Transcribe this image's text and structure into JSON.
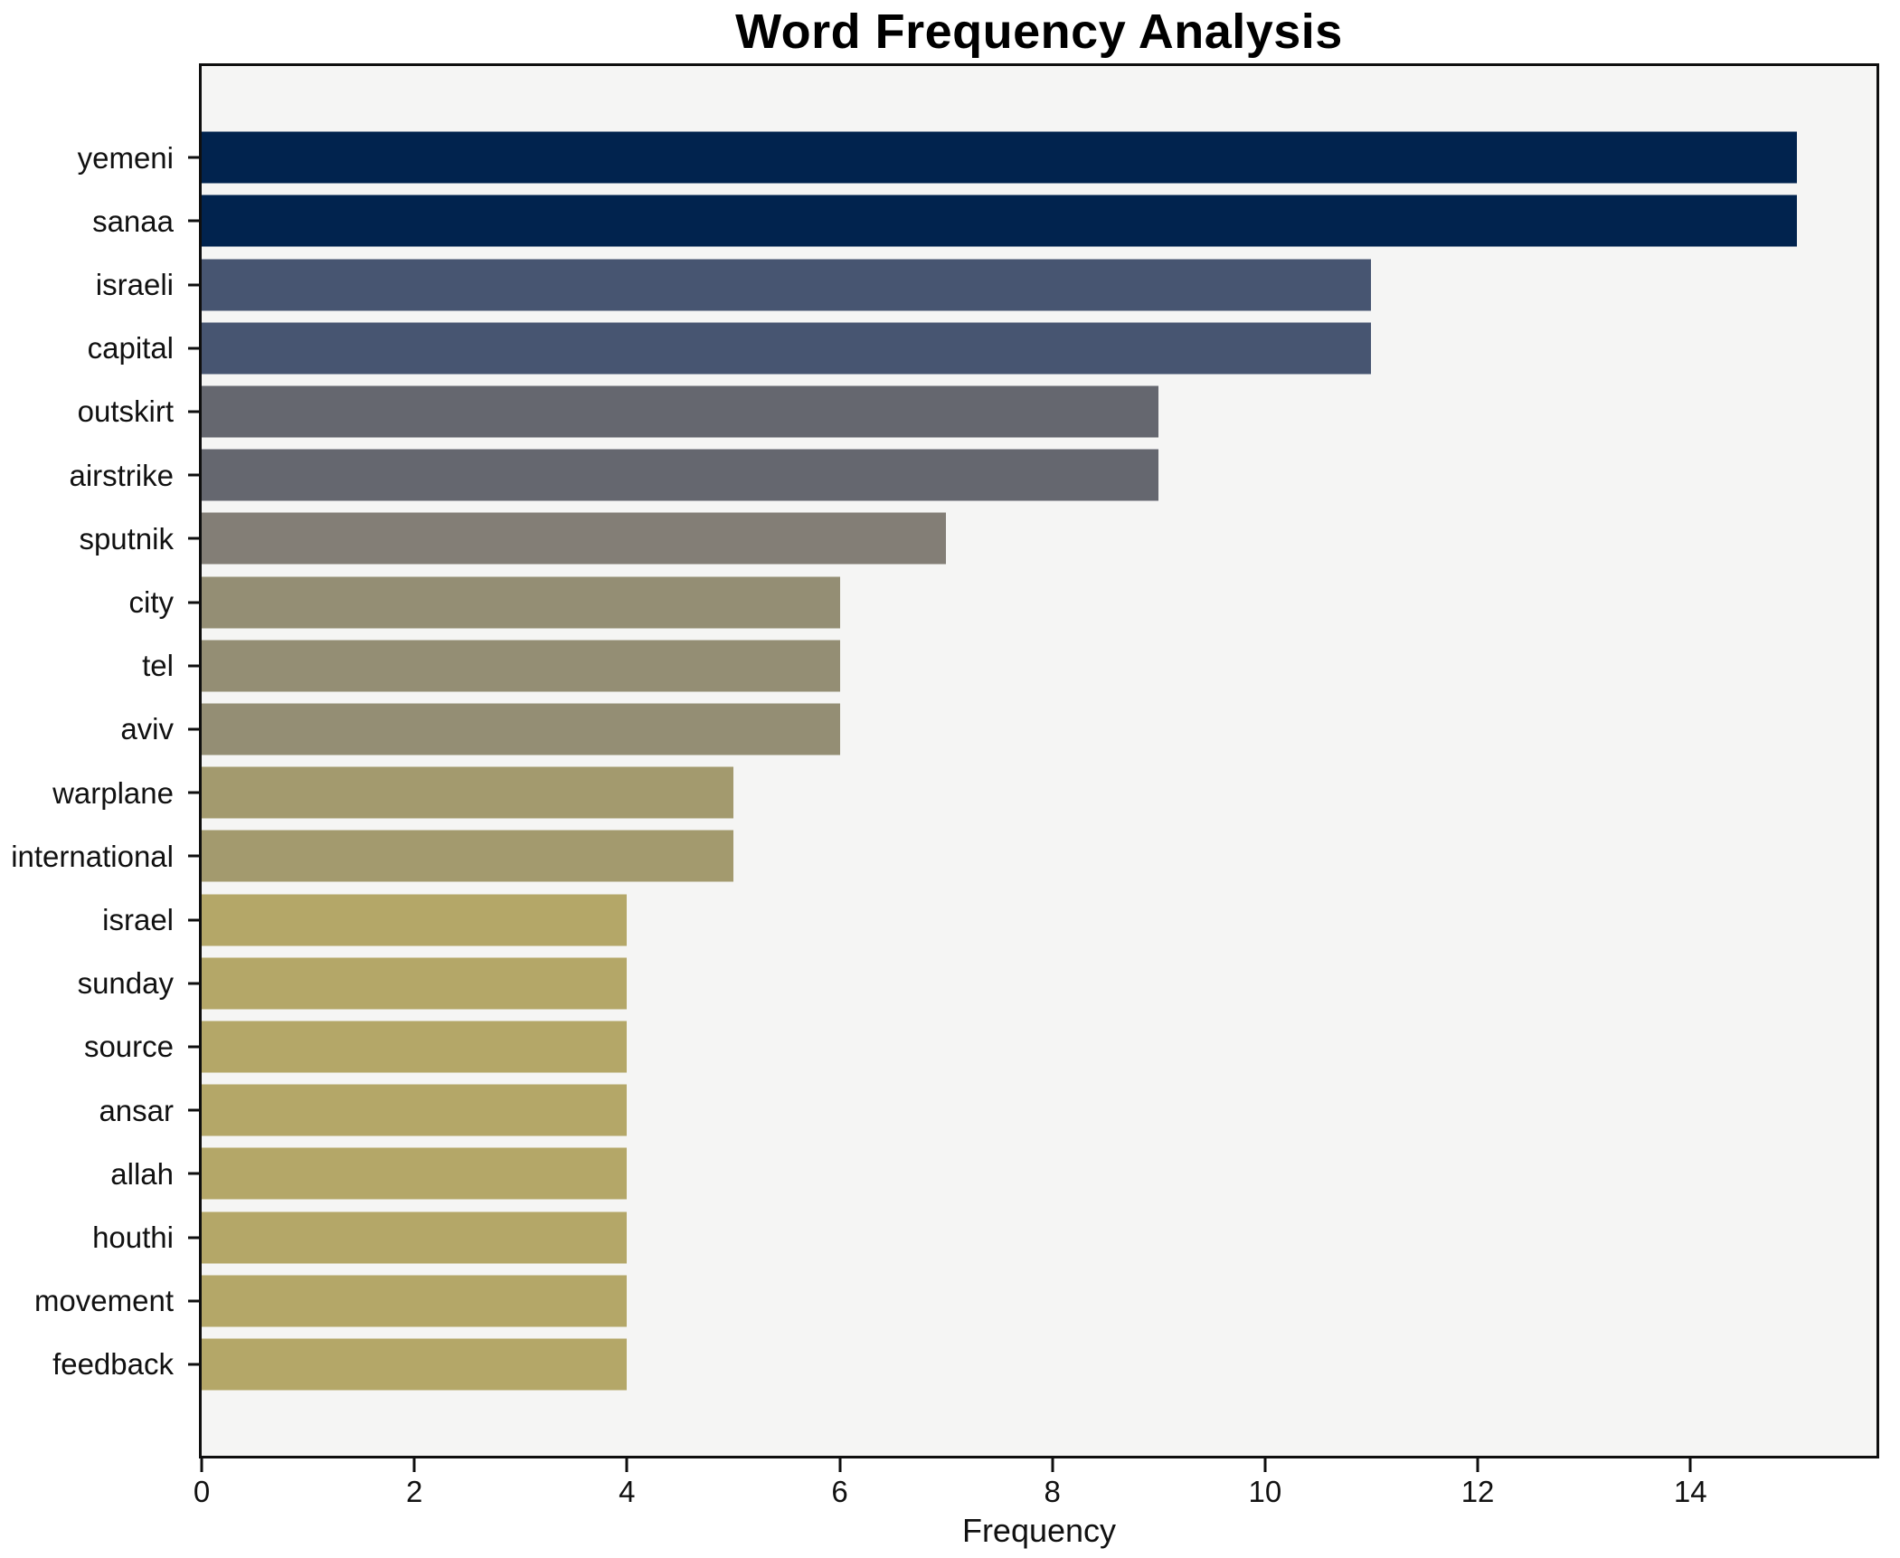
{
  "title": "Word Frequency Analysis",
  "x_axis": {
    "label": "Frequency",
    "ticks": [
      0,
      2,
      4,
      6,
      8,
      10,
      12,
      14
    ]
  },
  "colors": {
    "plot_background": "#f5f5f4",
    "figure_background": "#ffffff",
    "axis_line": "#0f0f0f",
    "text": "#111111"
  },
  "chart_data": {
    "type": "bar",
    "orientation": "horizontal",
    "title": "Word Frequency Analysis",
    "xlabel": "Frequency",
    "ylabel": "",
    "xlim": [
      0,
      15.75
    ],
    "grid": false,
    "legend": null,
    "categories": [
      "yemeni",
      "sanaa",
      "israeli",
      "capital",
      "outskirt",
      "airstrike",
      "sputnik",
      "city",
      "tel",
      "aviv",
      "warplane",
      "international",
      "israel",
      "sunday",
      "source",
      "ansar",
      "allah",
      "houthi",
      "movement",
      "feedback"
    ],
    "values": [
      15,
      15,
      11,
      11,
      9,
      9,
      7,
      6,
      6,
      6,
      5,
      5,
      4,
      4,
      4,
      4,
      4,
      4,
      4,
      4
    ],
    "bar_colors": [
      "#01234e",
      "#01234e",
      "#475571",
      "#475571",
      "#65676f",
      "#65676f",
      "#837e76",
      "#948e74",
      "#948e74",
      "#948e74",
      "#a39a6e",
      "#a39a6e",
      "#b4a768",
      "#b4a768",
      "#b4a768",
      "#b4a768",
      "#b4a768",
      "#b4a768",
      "#b4a768",
      "#b4a768"
    ]
  }
}
